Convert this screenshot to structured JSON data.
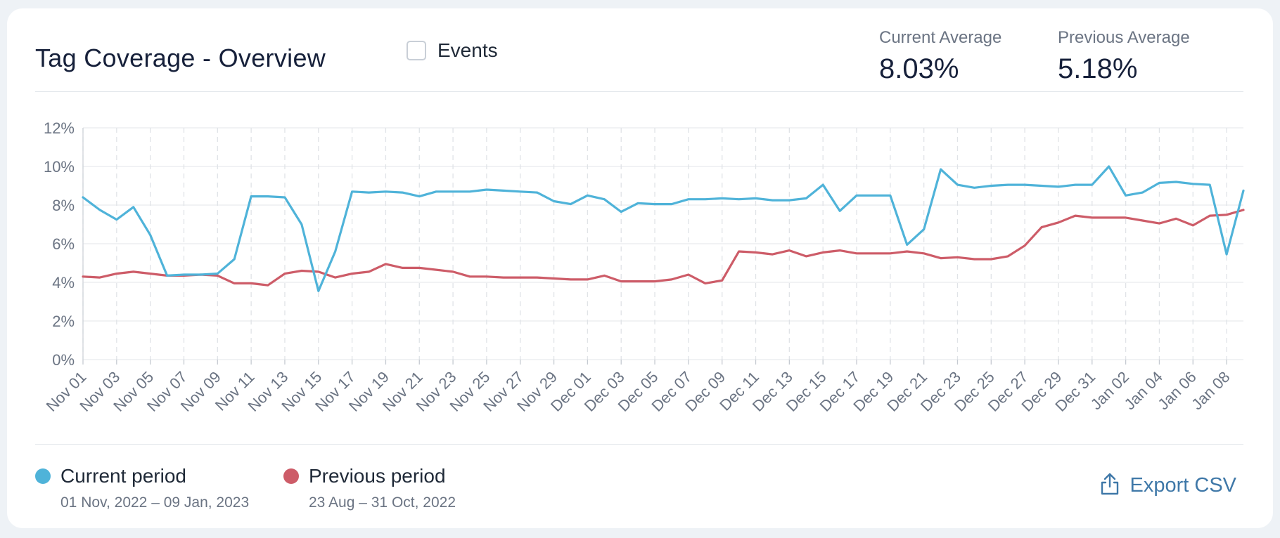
{
  "header": {
    "title": "Tag Coverage - Overview",
    "events_label": "Events",
    "events_checked": false,
    "current_average": {
      "label": "Current Average",
      "value": "8.03%"
    },
    "previous_average": {
      "label": "Previous Average",
      "value": "5.18%"
    }
  },
  "legend": {
    "current": {
      "label": "Current period",
      "range": "01 Nov, 2022 – 09 Jan, 2023",
      "color": "#4fb3d9"
    },
    "previous": {
      "label": "Previous period",
      "range": "23 Aug – 31 Oct, 2022",
      "color": "#cd5c68"
    }
  },
  "footer": {
    "export_label": "Export CSV"
  },
  "chart_data": {
    "type": "line",
    "title": "Tag Coverage - Overview",
    "xlabel": "",
    "ylabel": "",
    "ylim": [
      0,
      12
    ],
    "yticks": [
      "0%",
      "2%",
      "4%",
      "6%",
      "8%",
      "10%",
      "12%"
    ],
    "grid": true,
    "x": [
      "Nov 01",
      "Nov 02",
      "Nov 03",
      "Nov 04",
      "Nov 05",
      "Nov 06",
      "Nov 07",
      "Nov 08",
      "Nov 09",
      "Nov 10",
      "Nov 11",
      "Nov 12",
      "Nov 13",
      "Nov 14",
      "Nov 15",
      "Nov 16",
      "Nov 17",
      "Nov 18",
      "Nov 19",
      "Nov 20",
      "Nov 21",
      "Nov 22",
      "Nov 23",
      "Nov 24",
      "Nov 25",
      "Nov 26",
      "Nov 27",
      "Nov 28",
      "Nov 29",
      "Nov 30",
      "Dec 01",
      "Dec 02",
      "Dec 03",
      "Dec 04",
      "Dec 05",
      "Dec 06",
      "Dec 07",
      "Dec 08",
      "Dec 09",
      "Dec 10",
      "Dec 11",
      "Dec 12",
      "Dec 13",
      "Dec 14",
      "Dec 15",
      "Dec 16",
      "Dec 17",
      "Dec 18",
      "Dec 19",
      "Dec 20",
      "Dec 21",
      "Dec 22",
      "Dec 23",
      "Dec 24",
      "Dec 25",
      "Dec 26",
      "Dec 27",
      "Dec 28",
      "Dec 29",
      "Dec 30",
      "Dec 31",
      "Jan 01",
      "Jan 02",
      "Jan 03",
      "Jan 04",
      "Jan 05",
      "Jan 06",
      "Jan 07",
      "Jan 08",
      "Jan 09"
    ],
    "x_tick_labels": [
      "Nov 01",
      "Nov 03",
      "Nov 05",
      "Nov 07",
      "Nov 09",
      "Nov 11",
      "Nov 13",
      "Nov 15",
      "Nov 17",
      "Nov 19",
      "Nov 21",
      "Nov 23",
      "Nov 25",
      "Nov 27",
      "Nov 29",
      "Dec 01",
      "Dec 03",
      "Dec 05",
      "Dec 07",
      "Dec 09",
      "Dec 11",
      "Dec 13",
      "Dec 15",
      "Dec 17",
      "Dec 19",
      "Dec 21",
      "Dec 23",
      "Dec 25",
      "Dec 27",
      "Dec 29",
      "Dec 31",
      "Jan 02",
      "Jan 04",
      "Jan 06",
      "Jan 08"
    ],
    "series": [
      {
        "name": "Current period",
        "color": "#4fb3d9",
        "values": [
          8.4,
          7.75,
          7.25,
          7.9,
          6.45,
          4.35,
          4.4,
          4.4,
          4.45,
          5.2,
          8.45,
          8.45,
          8.4,
          7.0,
          3.55,
          5.6,
          8.7,
          8.65,
          8.7,
          8.65,
          8.45,
          8.7,
          8.7,
          8.7,
          8.8,
          8.75,
          8.7,
          8.65,
          8.2,
          8.05,
          8.5,
          8.3,
          7.65,
          8.1,
          8.05,
          8.05,
          8.3,
          8.3,
          8.35,
          8.3,
          8.35,
          8.25,
          8.25,
          8.35,
          9.05,
          7.7,
          8.5,
          8.5,
          8.5,
          5.95,
          6.75,
          9.85,
          9.05,
          8.9,
          9.0,
          9.05,
          9.05,
          9.0,
          8.95,
          9.05,
          9.05,
          10.0,
          8.5,
          8.65,
          9.15,
          9.2,
          9.1,
          9.05,
          5.45,
          8.75
        ]
      },
      {
        "name": "Previous period",
        "color": "#cd5c68",
        "values": [
          4.3,
          4.25,
          4.45,
          4.55,
          4.45,
          4.35,
          4.35,
          4.4,
          4.35,
          3.95,
          3.95,
          3.85,
          4.45,
          4.6,
          4.55,
          4.25,
          4.45,
          4.55,
          4.95,
          4.75,
          4.75,
          4.65,
          4.55,
          4.3,
          4.3,
          4.25,
          4.25,
          4.25,
          4.2,
          4.15,
          4.15,
          4.35,
          4.05,
          4.05,
          4.05,
          4.15,
          4.4,
          3.95,
          4.1,
          5.6,
          5.55,
          5.45,
          5.65,
          5.35,
          5.55,
          5.65,
          5.5,
          5.5,
          5.5,
          5.6,
          5.5,
          5.25,
          5.3,
          5.2,
          5.2,
          5.35,
          5.9,
          6.85,
          7.1,
          7.45,
          7.35,
          7.35,
          7.35,
          7.2,
          7.05,
          7.3,
          6.95,
          7.45,
          7.5,
          7.75
        ]
      }
    ]
  }
}
